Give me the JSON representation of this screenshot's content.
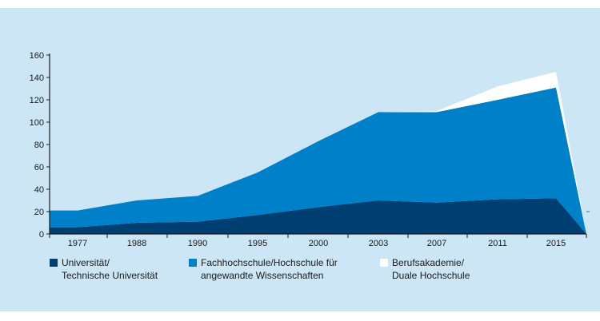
{
  "chart_data": {
    "type": "area",
    "stacked": true,
    "title": "",
    "xlabel": "",
    "ylabel": "",
    "ylim": [
      0,
      160
    ],
    "yticks": [
      0,
      20,
      40,
      60,
      80,
      100,
      120,
      140,
      160
    ],
    "xtick_labels": [
      "1977",
      "1988",
      "1990",
      "1995",
      "2000",
      "2003",
      "2007",
      "2011",
      "2015"
    ],
    "x": [
      "1975",
      "1977",
      "1988",
      "1990",
      "1995",
      "2000",
      "2003",
      "2007",
      "2011",
      "2015",
      "2016"
    ],
    "series": [
      {
        "name": "Universität/ Technische Universität",
        "legend_line1": "Universität/",
        "legend_line2": "Technische Universität",
        "color": "#003f72",
        "values": [
          6,
          6,
          10,
          11,
          17,
          24,
          30,
          28,
          31,
          32,
          0
        ]
      },
      {
        "name": "Fachhochschule/Hochschule für angewandte Wissenschaften",
        "legend_line1": "Fachhochschule/Hochschule für",
        "legend_line2": "angewandte Wissenschaften",
        "color": "#0080c8",
        "values": [
          15,
          15,
          20,
          23,
          38,
          59,
          79,
          81,
          89,
          99,
          0
        ]
      },
      {
        "name": "Berufsakademie/ Duale Hochschule",
        "legend_line1": "Berufsakademie/",
        "legend_line2": "Duale Hochschule",
        "color": "#ffffff",
        "values": [
          0,
          0,
          0,
          0,
          0,
          0,
          0,
          1,
          12,
          14,
          0
        ]
      }
    ],
    "grid": false,
    "legend_position": "bottom",
    "background": "#cce6f6"
  }
}
